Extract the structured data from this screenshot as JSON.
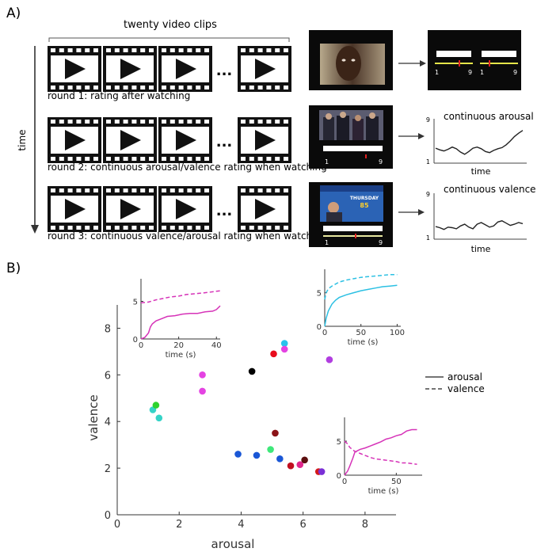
{
  "panel_a": {
    "label": "A)",
    "top_label": "twenty video clips",
    "time_label": "time",
    "ellipsis": "...",
    "rounds": [
      "round 1: rating after watching",
      "round 2: continuous arousal/valence rating when watching",
      "round 3: continuous valence/arousal rating when watching"
    ],
    "screen_ticks": {
      "min": "1",
      "max": "9"
    },
    "result_plots": [
      {
        "title": "continuous arousal",
        "ymax": "9",
        "ymin": "1",
        "xlabel": "time",
        "trace": [
          3.7,
          3.4,
          3.2,
          3.5,
          3.9,
          3.6,
          3.0,
          2.6,
          3.1,
          3.7,
          3.9,
          3.6,
          3.1,
          2.9,
          3.3,
          3.6,
          3.8,
          4.3,
          5.0,
          5.8,
          6.4,
          6.9
        ]
      },
      {
        "title": "continuous valence",
        "ymax": "9",
        "ymin": "1",
        "xlabel": "time",
        "trace": [
          3.2,
          3.0,
          2.7,
          3.1,
          3.0,
          2.8,
          3.3,
          3.6,
          3.1,
          2.8,
          3.6,
          3.9,
          3.5,
          3.1,
          3.3,
          4.0,
          4.2,
          3.8,
          3.4,
          3.6,
          3.9,
          3.7
        ]
      }
    ]
  },
  "panel_b": {
    "label": "B)",
    "legend": {
      "solid": "arousal",
      "dashed": "valence"
    },
    "colors": {
      "arousal_inset": "#d633b8",
      "cyan_inset": "#2cc0e3"
    }
  },
  "chart_data": [
    {
      "type": "scatter",
      "xlabel": "arousal",
      "ylabel": "valence",
      "xlim": [
        0,
        9
      ],
      "ylim": [
        0,
        9
      ],
      "xticks": [
        0,
        2,
        4,
        6,
        8
      ],
      "yticks": [
        0,
        2,
        4,
        6,
        8
      ],
      "points": [
        {
          "x": 1.15,
          "y": 4.5,
          "color": "#35d3c7"
        },
        {
          "x": 1.25,
          "y": 4.7,
          "color": "#2ed32e"
        },
        {
          "x": 1.35,
          "y": 4.15,
          "color": "#35d3c7"
        },
        {
          "x": 2.75,
          "y": 6.0,
          "color": "#e443e2"
        },
        {
          "x": 2.75,
          "y": 5.3,
          "color": "#e443e2"
        },
        {
          "x": 3.9,
          "y": 2.6,
          "color": "#1a57d6"
        },
        {
          "x": 4.35,
          "y": 6.15,
          "color": "#000000"
        },
        {
          "x": 4.5,
          "y": 2.55,
          "color": "#1a57d6"
        },
        {
          "x": 4.95,
          "y": 2.8,
          "color": "#3ee87a"
        },
        {
          "x": 5.05,
          "y": 6.9,
          "color": "#e80c1c"
        },
        {
          "x": 5.1,
          "y": 3.5,
          "color": "#8b1217"
        },
        {
          "x": 5.25,
          "y": 2.4,
          "color": "#1a57d6"
        },
        {
          "x": 5.4,
          "y": 7.35,
          "color": "#27c3ec"
        },
        {
          "x": 5.4,
          "y": 7.1,
          "color": "#e443e2"
        },
        {
          "x": 5.6,
          "y": 2.1,
          "color": "#c10f1f"
        },
        {
          "x": 5.9,
          "y": 2.15,
          "color": "#e0268c"
        },
        {
          "x": 6.05,
          "y": 2.35,
          "color": "#5c0f0f"
        },
        {
          "x": 6.5,
          "y": 1.85,
          "color": "#d41a1a"
        },
        {
          "x": 6.6,
          "y": 1.85,
          "color": "#7a2fd6"
        },
        {
          "x": 6.85,
          "y": 6.65,
          "color": "#b13ee0"
        }
      ]
    },
    {
      "type": "line",
      "xlabel": "time (s)",
      "xlim": [
        0,
        42
      ],
      "ylim": [
        0,
        8
      ],
      "xticks": [
        0,
        20,
        40
      ],
      "yticks": [
        0,
        5
      ],
      "color": "#d633b8",
      "series": [
        {
          "style": "solid",
          "x": [
            0,
            2,
            4,
            5,
            6,
            8,
            10,
            14,
            18,
            22,
            26,
            30,
            34,
            38,
            40,
            42
          ],
          "y": [
            0,
            0.2,
            0.8,
            1.6,
            2.0,
            2.4,
            2.6,
            3.0,
            3.1,
            3.3,
            3.4,
            3.4,
            3.6,
            3.7,
            3.9,
            4.4
          ]
        },
        {
          "style": "dashed",
          "x": [
            0,
            4,
            8,
            12,
            16,
            20,
            24,
            28,
            32,
            36,
            40,
            42
          ],
          "y": [
            4.8,
            4.9,
            5.2,
            5.4,
            5.6,
            5.7,
            5.9,
            6.0,
            6.1,
            6.2,
            6.35,
            6.4
          ]
        }
      ]
    },
    {
      "type": "line",
      "xlabel": "time (s)",
      "xlim": [
        0,
        105
      ],
      "ylim": [
        0,
        8.5
      ],
      "xticks": [
        0,
        50,
        100
      ],
      "yticks": [
        0,
        5
      ],
      "color": "#2cc0e3",
      "series": [
        {
          "style": "solid",
          "x": [
            0,
            2,
            5,
            10,
            15,
            20,
            30,
            40,
            50,
            60,
            70,
            80,
            90,
            100
          ],
          "y": [
            0,
            1.2,
            2.3,
            3.3,
            3.9,
            4.3,
            4.7,
            5.0,
            5.3,
            5.5,
            5.7,
            5.9,
            6.0,
            6.1
          ]
        },
        {
          "style": "dashed",
          "x": [
            0,
            2,
            5,
            10,
            20,
            30,
            40,
            50,
            60,
            70,
            80,
            90,
            100
          ],
          "y": [
            4.0,
            5.0,
            5.6,
            6.0,
            6.6,
            6.9,
            7.1,
            7.3,
            7.4,
            7.5,
            7.6,
            7.7,
            7.7
          ]
        }
      ]
    },
    {
      "type": "line",
      "xlabel": "time (s)",
      "xlim": [
        0,
        75
      ],
      "ylim": [
        0,
        8.5
      ],
      "xticks": [
        0,
        50
      ],
      "yticks": [
        0,
        5
      ],
      "color": "#d633b8",
      "series": [
        {
          "style": "solid",
          "x": [
            0,
            3,
            5,
            8,
            10,
            15,
            20,
            25,
            30,
            35,
            40,
            45,
            50,
            55,
            60,
            65,
            70
          ],
          "y": [
            0,
            0.6,
            1.3,
            2.5,
            3.4,
            3.8,
            4.0,
            4.3,
            4.6,
            4.9,
            5.3,
            5.5,
            5.8,
            6.0,
            6.5,
            6.7,
            6.7
          ]
        },
        {
          "style": "dashed",
          "x": [
            0,
            3,
            5,
            8,
            10,
            15,
            20,
            25,
            30,
            40,
            50,
            55,
            60,
            65,
            70
          ],
          "y": [
            5.0,
            4.6,
            4.1,
            3.7,
            3.5,
            3.2,
            2.9,
            2.6,
            2.4,
            2.2,
            2.0,
            1.8,
            1.8,
            1.7,
            1.6
          ]
        }
      ]
    }
  ]
}
